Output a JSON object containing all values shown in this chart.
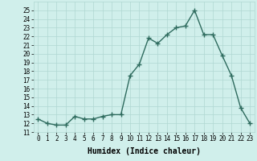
{
  "x": [
    0,
    1,
    2,
    3,
    4,
    5,
    6,
    7,
    8,
    9,
    10,
    11,
    12,
    13,
    14,
    15,
    16,
    17,
    18,
    19,
    20,
    21,
    22,
    23
  ],
  "y": [
    12.5,
    12.0,
    11.8,
    11.8,
    12.8,
    12.5,
    12.5,
    12.8,
    13.0,
    13.0,
    17.5,
    18.8,
    21.8,
    21.2,
    22.2,
    23.0,
    23.2,
    25.0,
    22.2,
    22.2,
    19.8,
    17.5,
    13.8,
    12.0
  ],
  "line_color": "#2e6b5e",
  "marker": "+",
  "marker_size": 4,
  "bg_color": "#d0efeb",
  "grid_color": "#b0d8d2",
  "xlabel": "Humidex (Indice chaleur)",
  "ylim": [
    11,
    26
  ],
  "xlim": [
    -0.5,
    23.5
  ],
  "yticks": [
    11,
    12,
    13,
    14,
    15,
    16,
    17,
    18,
    19,
    20,
    21,
    22,
    23,
    24,
    25
  ],
  "xticks": [
    0,
    1,
    2,
    3,
    4,
    5,
    6,
    7,
    8,
    9,
    10,
    11,
    12,
    13,
    14,
    15,
    16,
    17,
    18,
    19,
    20,
    21,
    22,
    23
  ],
  "tick_fontsize": 5.5,
  "xlabel_fontsize": 7,
  "line_width": 1.0
}
